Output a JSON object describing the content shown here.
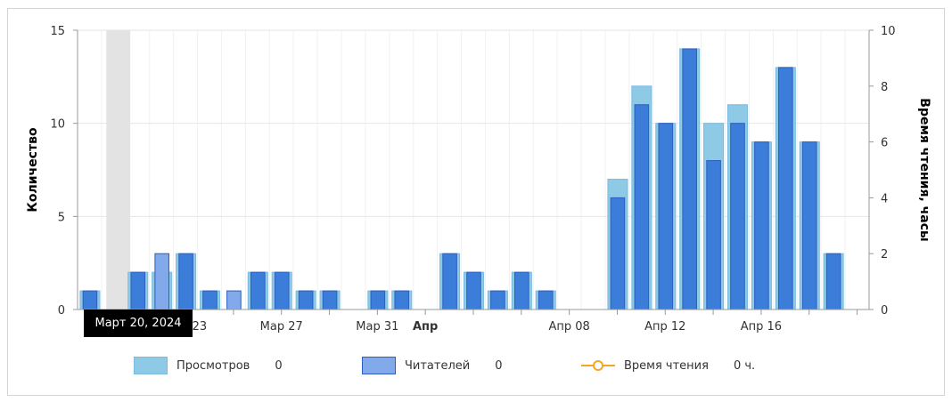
{
  "chart_data": {
    "type": "bar",
    "dates": [
      "Мар 19",
      "Мар 20",
      "Мар 21",
      "Мар 22",
      "Мар 23",
      "Мар 24",
      "Мар 25",
      "Мар 26",
      "Мар 27",
      "Мар 28",
      "Мар 29",
      "Мар 30",
      "Мар 31",
      "Апр 01",
      "Апр 02",
      "Апр 03",
      "Апр 04",
      "Апр 05",
      "Апр 06",
      "Апр 07",
      "Апр 08",
      "Апр 09",
      "Апр 10",
      "Апр 11",
      "Апр 12",
      "Апр 13",
      "Апр 14",
      "Апр 15",
      "Апр 16",
      "Апр 17",
      "Апр 18",
      "Апр 19",
      "Апр 20"
    ],
    "series": [
      {
        "name": "Просмотров",
        "values": [
          1,
          0,
          2,
          2,
          3,
          1,
          0,
          2,
          2,
          1,
          1,
          0,
          1,
          1,
          0,
          3,
          2,
          1,
          2,
          1,
          0,
          0,
          7,
          12,
          10,
          14,
          10,
          11,
          9,
          13,
          9,
          3,
          0
        ],
        "color": "#8ecae6"
      },
      {
        "name": "Читателей",
        "values": [
          1,
          0,
          2,
          3,
          3,
          1,
          1,
          2,
          2,
          1,
          1,
          0,
          1,
          1,
          0,
          3,
          2,
          1,
          2,
          1,
          0,
          0,
          6,
          11,
          10,
          14,
          8,
          10,
          9,
          13,
          9,
          3,
          0
        ],
        "color": "#3b7dd8"
      }
    ],
    "line_series": {
      "name": "Время чтения",
      "values": [
        0,
        0,
        0,
        0,
        0,
        0,
        0,
        0,
        0,
        0,
        0,
        0,
        0,
        0,
        0,
        0,
        0,
        0,
        0,
        0,
        0,
        0,
        0,
        0,
        0,
        0,
        0,
        0,
        0,
        0,
        0,
        0,
        0
      ],
      "color": "#f5a623"
    },
    "highlight_index": 1,
    "x_tick_labels": [
      {
        "index": 4,
        "label": "Мар 23",
        "bold": false
      },
      {
        "index": 8,
        "label": "Мар 27",
        "bold": false
      },
      {
        "index": 12,
        "label": "Мар 31",
        "bold": false
      },
      {
        "index": 14,
        "label": "Апр",
        "bold": true
      },
      {
        "index": 20,
        "label": "Апр 08",
        "bold": false
      },
      {
        "index": 24,
        "label": "Апр 12",
        "bold": false
      },
      {
        "index": 28,
        "label": "Апр 16",
        "bold": false
      }
    ],
    "y_left": {
      "label": "Количество",
      "min": 0,
      "max": 15,
      "ticks": [
        0,
        5,
        10,
        15
      ]
    },
    "y_right": {
      "label": "Время чтения, часы",
      "min": 0,
      "max": 10,
      "ticks": [
        0,
        2,
        4,
        6,
        8,
        10
      ]
    },
    "grid": true
  },
  "tooltip": {
    "text": "Март 20, 2024"
  },
  "legend": [
    {
      "label": "Просмотров",
      "value": "0"
    },
    {
      "label": "Читателей",
      "value": "0"
    },
    {
      "label": "Время чтения",
      "value": "0 ч."
    }
  ]
}
